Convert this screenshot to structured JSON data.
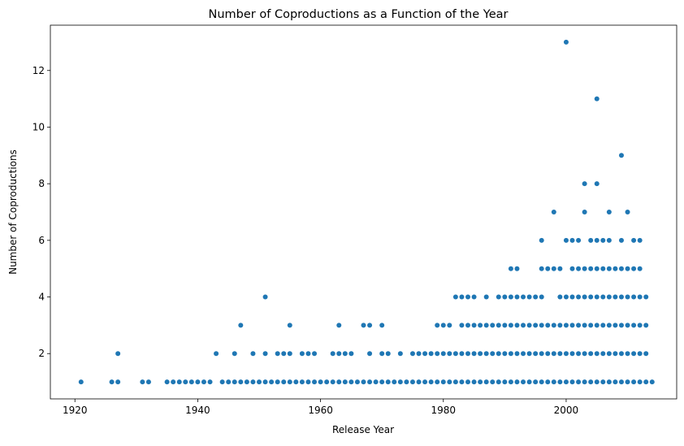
{
  "chart_data": {
    "type": "scatter",
    "title": "Number of Coproductions as a Function of the Year",
    "xlabel": "Release Year",
    "ylabel": "Number of Coproductions",
    "xlim": [
      1916,
      2018
    ],
    "ylim": [
      0.4,
      13.6
    ],
    "xticks": [
      1920,
      1940,
      1960,
      1980,
      2000
    ],
    "yticks": [
      2,
      4,
      6,
      8,
      10,
      12
    ],
    "marker_color": "#1f77b4",
    "grid": false,
    "legend": "none",
    "series": [
      {
        "points": [
          [
            1921,
            1
          ],
          [
            1926,
            1
          ],
          [
            1927,
            1
          ],
          [
            1927,
            2
          ],
          [
            1931,
            1
          ],
          [
            1932,
            1
          ],
          [
            1935,
            1
          ],
          [
            1936,
            1
          ],
          [
            1937,
            1
          ],
          [
            1938,
            1
          ],
          [
            1939,
            1
          ],
          [
            1940,
            1
          ],
          [
            1941,
            1
          ],
          [
            1942,
            1
          ],
          [
            1943,
            2
          ],
          [
            1944,
            1
          ],
          [
            1945,
            1
          ],
          [
            1946,
            1
          ],
          [
            1946,
            2
          ],
          [
            1947,
            1
          ],
          [
            1947,
            3
          ],
          [
            1948,
            1
          ],
          [
            1949,
            1
          ],
          [
            1949,
            2
          ],
          [
            1950,
            1
          ],
          [
            1951,
            1
          ],
          [
            1951,
            2
          ],
          [
            1951,
            4
          ],
          [
            1952,
            1
          ],
          [
            1953,
            1
          ],
          [
            1953,
            2
          ],
          [
            1954,
            1
          ],
          [
            1954,
            2
          ],
          [
            1955,
            1
          ],
          [
            1955,
            2
          ],
          [
            1955,
            3
          ],
          [
            1956,
            1
          ],
          [
            1957,
            1
          ],
          [
            1957,
            2
          ],
          [
            1958,
            1
          ],
          [
            1958,
            2
          ],
          [
            1959,
            1
          ],
          [
            1959,
            2
          ],
          [
            1960,
            1
          ],
          [
            1961,
            1
          ],
          [
            1962,
            1
          ],
          [
            1962,
            2
          ],
          [
            1963,
            1
          ],
          [
            1963,
            2
          ],
          [
            1963,
            3
          ],
          [
            1964,
            1
          ],
          [
            1964,
            2
          ],
          [
            1965,
            1
          ],
          [
            1965,
            2
          ],
          [
            1966,
            1
          ],
          [
            1967,
            1
          ],
          [
            1967,
            3
          ],
          [
            1968,
            1
          ],
          [
            1968,
            2
          ],
          [
            1968,
            3
          ],
          [
            1969,
            1
          ],
          [
            1970,
            1
          ],
          [
            1970,
            2
          ],
          [
            1970,
            3
          ],
          [
            1971,
            1
          ],
          [
            1971,
            2
          ],
          [
            1972,
            1
          ],
          [
            1973,
            1
          ],
          [
            1973,
            2
          ],
          [
            1974,
            1
          ],
          [
            1975,
            1
          ],
          [
            1975,
            2
          ],
          [
            1976,
            1
          ],
          [
            1976,
            2
          ],
          [
            1977,
            1
          ],
          [
            1977,
            2
          ],
          [
            1978,
            1
          ],
          [
            1978,
            2
          ],
          [
            1979,
            1
          ],
          [
            1979,
            2
          ],
          [
            1979,
            3
          ],
          [
            1980,
            1
          ],
          [
            1980,
            2
          ],
          [
            1980,
            3
          ],
          [
            1981,
            1
          ],
          [
            1981,
            2
          ],
          [
            1981,
            3
          ],
          [
            1982,
            1
          ],
          [
            1982,
            2
          ],
          [
            1982,
            4
          ],
          [
            1983,
            1
          ],
          [
            1983,
            2
          ],
          [
            1983,
            3
          ],
          [
            1983,
            4
          ],
          [
            1984,
            1
          ],
          [
            1984,
            2
          ],
          [
            1984,
            3
          ],
          [
            1984,
            4
          ],
          [
            1985,
            1
          ],
          [
            1985,
            2
          ],
          [
            1985,
            3
          ],
          [
            1985,
            4
          ],
          [
            1986,
            1
          ],
          [
            1986,
            2
          ],
          [
            1986,
            3
          ],
          [
            1987,
            1
          ],
          [
            1987,
            2
          ],
          [
            1987,
            3
          ],
          [
            1987,
            4
          ],
          [
            1988,
            1
          ],
          [
            1988,
            2
          ],
          [
            1988,
            3
          ],
          [
            1989,
            1
          ],
          [
            1989,
            2
          ],
          [
            1989,
            3
          ],
          [
            1989,
            4
          ],
          [
            1990,
            1
          ],
          [
            1990,
            2
          ],
          [
            1990,
            3
          ],
          [
            1990,
            4
          ],
          [
            1991,
            1
          ],
          [
            1991,
            2
          ],
          [
            1991,
            3
          ],
          [
            1991,
            4
          ],
          [
            1991,
            5
          ],
          [
            1992,
            1
          ],
          [
            1992,
            2
          ],
          [
            1992,
            3
          ],
          [
            1992,
            4
          ],
          [
            1992,
            5
          ],
          [
            1993,
            1
          ],
          [
            1993,
            2
          ],
          [
            1993,
            3
          ],
          [
            1993,
            4
          ],
          [
            1994,
            1
          ],
          [
            1994,
            2
          ],
          [
            1994,
            3
          ],
          [
            1994,
            4
          ],
          [
            1995,
            1
          ],
          [
            1995,
            2
          ],
          [
            1995,
            3
          ],
          [
            1995,
            4
          ],
          [
            1996,
            1
          ],
          [
            1996,
            2
          ],
          [
            1996,
            3
          ],
          [
            1996,
            4
          ],
          [
            1996,
            5
          ],
          [
            1996,
            6
          ],
          [
            1997,
            1
          ],
          [
            1997,
            2
          ],
          [
            1997,
            3
          ],
          [
            1997,
            5
          ],
          [
            1998,
            1
          ],
          [
            1998,
            2
          ],
          [
            1998,
            3
          ],
          [
            1998,
            5
          ],
          [
            1998,
            7
          ],
          [
            1999,
            1
          ],
          [
            1999,
            2
          ],
          [
            1999,
            3
          ],
          [
            1999,
            4
          ],
          [
            1999,
            5
          ],
          [
            2000,
            1
          ],
          [
            2000,
            2
          ],
          [
            2000,
            3
          ],
          [
            2000,
            4
          ],
          [
            2000,
            6
          ],
          [
            2000,
            13
          ],
          [
            2001,
            1
          ],
          [
            2001,
            2
          ],
          [
            2001,
            3
          ],
          [
            2001,
            4
          ],
          [
            2001,
            5
          ],
          [
            2001,
            6
          ],
          [
            2002,
            1
          ],
          [
            2002,
            2
          ],
          [
            2002,
            3
          ],
          [
            2002,
            4
          ],
          [
            2002,
            5
          ],
          [
            2002,
            6
          ],
          [
            2003,
            1
          ],
          [
            2003,
            2
          ],
          [
            2003,
            3
          ],
          [
            2003,
            4
          ],
          [
            2003,
            5
          ],
          [
            2003,
            7
          ],
          [
            2003,
            8
          ],
          [
            2004,
            1
          ],
          [
            2004,
            2
          ],
          [
            2004,
            3
          ],
          [
            2004,
            4
          ],
          [
            2004,
            5
          ],
          [
            2004,
            6
          ],
          [
            2005,
            1
          ],
          [
            2005,
            2
          ],
          [
            2005,
            3
          ],
          [
            2005,
            4
          ],
          [
            2005,
            5
          ],
          [
            2005,
            6
          ],
          [
            2005,
            8
          ],
          [
            2005,
            11
          ],
          [
            2006,
            1
          ],
          [
            2006,
            2
          ],
          [
            2006,
            3
          ],
          [
            2006,
            4
          ],
          [
            2006,
            5
          ],
          [
            2006,
            6
          ],
          [
            2007,
            1
          ],
          [
            2007,
            2
          ],
          [
            2007,
            3
          ],
          [
            2007,
            4
          ],
          [
            2007,
            5
          ],
          [
            2007,
            6
          ],
          [
            2007,
            7
          ],
          [
            2008,
            1
          ],
          [
            2008,
            2
          ],
          [
            2008,
            3
          ],
          [
            2008,
            4
          ],
          [
            2008,
            5
          ],
          [
            2009,
            1
          ],
          [
            2009,
            2
          ],
          [
            2009,
            3
          ],
          [
            2009,
            4
          ],
          [
            2009,
            5
          ],
          [
            2009,
            6
          ],
          [
            2009,
            9
          ],
          [
            2010,
            1
          ],
          [
            2010,
            2
          ],
          [
            2010,
            3
          ],
          [
            2010,
            4
          ],
          [
            2010,
            5
          ],
          [
            2010,
            7
          ],
          [
            2011,
            1
          ],
          [
            2011,
            2
          ],
          [
            2011,
            3
          ],
          [
            2011,
            4
          ],
          [
            2011,
            5
          ],
          [
            2011,
            6
          ],
          [
            2012,
            1
          ],
          [
            2012,
            2
          ],
          [
            2012,
            3
          ],
          [
            2012,
            4
          ],
          [
            2012,
            5
          ],
          [
            2012,
            6
          ],
          [
            2013,
            1
          ],
          [
            2013,
            2
          ],
          [
            2013,
            3
          ],
          [
            2013,
            4
          ],
          [
            2014,
            1
          ]
        ]
      }
    ]
  }
}
